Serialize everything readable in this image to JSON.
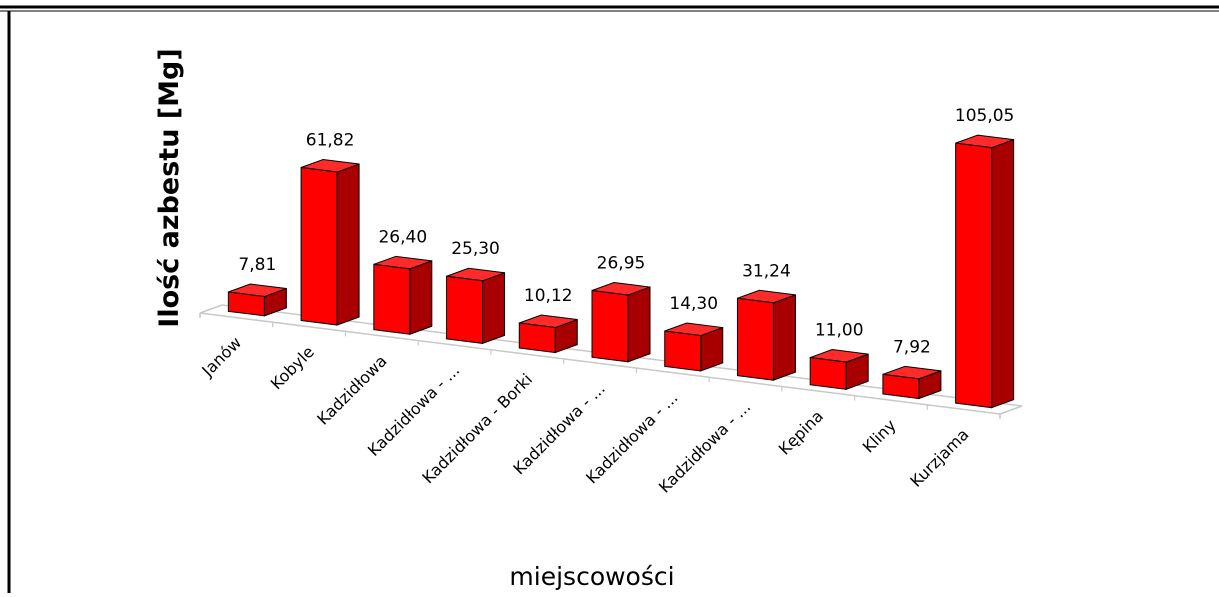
{
  "chart_data": {
    "type": "bar",
    "style": "3d-column",
    "title": "",
    "xlabel": "miejscowości",
    "ylabel": "Ilość azbestu [Mg]",
    "categories": [
      "Janów",
      "Kobyle",
      "Kadzidłowa",
      "Kadzidłowa - ...",
      "Kadzidłowa - Borki",
      "Kadzidłowa - ...",
      "Kadzidłowa - ...",
      "Kadzidłowa - ...",
      "Kępina",
      "Kliny",
      "Kurzjama"
    ],
    "values": [
      7.81,
      61.82,
      26.4,
      25.3,
      10.12,
      26.95,
      14.3,
      31.24,
      11.0,
      7.92,
      105.05
    ],
    "value_labels": [
      "7,81",
      "61,82",
      "26,40",
      "25,30",
      "10,12",
      "26,95",
      "14,30",
      "31,24",
      "11,00",
      "7,92",
      "105,05"
    ],
    "ylim": [
      0,
      110
    ],
    "grid": false,
    "legend": "none",
    "colors": {
      "bar_front": "#ff0000",
      "bar_side": "#a80000",
      "bar_top": "#ff2a2a",
      "bar_stroke": "#000000",
      "floor": "#c8c8c8"
    }
  }
}
